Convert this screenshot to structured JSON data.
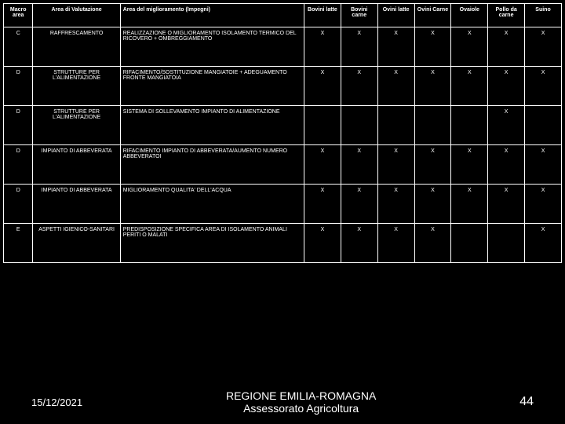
{
  "table": {
    "columns": [
      "Macro area",
      "Area di Valutazione",
      "Area del miglioramento (Impegni)",
      "Bovini latte",
      "Bovini carne",
      "Ovini latte",
      "Ovini Carne",
      "Ovaiole",
      "Pollo da carne",
      "Suino"
    ],
    "rows": [
      {
        "macro": "C",
        "area": "RAFFRESCAMENTO",
        "impegni": "REALIZZAZIONE O MIGLIORAMENTO ISOLAMENTO TERMICO DEL RICOVERO + OMBREGGIAMENTO",
        "marks": [
          "X",
          "X",
          "X",
          "X",
          "X",
          "X",
          "X"
        ]
      },
      {
        "macro": "D",
        "area": "STRUTTURE PER L'ALIMENTAZIONE",
        "impegni": "RIFACIMENTO/SOSTITUZIONE MANGIATOIE + ADEGUAMENTO FRONTE MANGIATOIA",
        "marks": [
          "X",
          "X",
          "X",
          "X",
          "X",
          "X",
          "X"
        ]
      },
      {
        "macro": "D",
        "area": "STRUTTURE PER L'ALIMENTAZIONE",
        "impegni": "SISTEMA DI SOLLEVAMENTO IMPIANTO DI ALIMENTAZIONE",
        "marks": [
          "",
          "",
          "",
          "",
          "",
          "X",
          ""
        ]
      },
      {
        "macro": "D",
        "area": "IMPIANTO DI ABBEVERATA",
        "impegni": "RIFACIMENTO IMPIANTO DI ABBEVERATA/AUMENTO NUMERO ABBEVERATOI",
        "marks": [
          "X",
          "X",
          "X",
          "X",
          "X",
          "X",
          "X"
        ]
      },
      {
        "macro": "D",
        "area": "IMPIANTO DI ABBEVERATA",
        "impegni": "MIGLIORAMENTO QUALITA' DELL'ACQUA",
        "marks": [
          "X",
          "X",
          "X",
          "X",
          "X",
          "X",
          "X"
        ]
      },
      {
        "macro": "E",
        "area": "ASPETTI IGIENICO-SANITARI",
        "impegni": "PREDISPOSIZIONE SPECIFICA AREA DI ISOLAMENTO ANIMALI PERITI O MALATI",
        "marks": [
          "X",
          "X",
          "X",
          "X",
          "",
          "",
          "X"
        ]
      }
    ]
  },
  "footer": {
    "date": "15/12/2021",
    "center_line1": "REGIONE EMILIA-ROMAGNA",
    "center_line2": "Assessorato Agricoltura",
    "page": "44"
  },
  "colors": {
    "background": "#000000",
    "border": "#ffffff",
    "text": "#ffffff"
  }
}
